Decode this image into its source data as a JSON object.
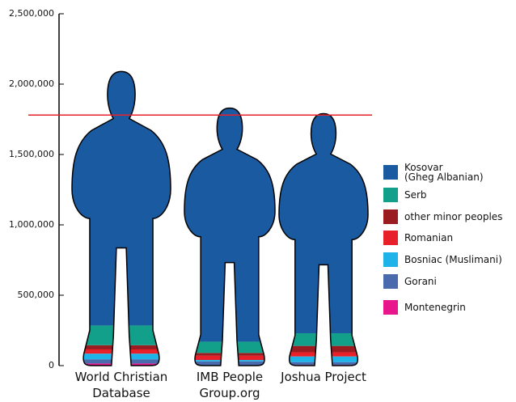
{
  "chart_data": {
    "type": "pictograph",
    "categories": [
      "World Christian Database",
      "IMB People Group.org",
      "Joshua Project"
    ],
    "series": [
      {
        "name": "Kosovar\n(Gheg Albanian)",
        "color": "#1a5aa0",
        "values": [
          1805000,
          1660000,
          1560000
        ]
      },
      {
        "name": "Serb",
        "color": "#12a08a",
        "values": [
          140000,
          80000,
          90000
        ]
      },
      {
        "name": "other minor peoples",
        "color": "#9b1c20",
        "values": [
          30000,
          20000,
          45000
        ]
      },
      {
        "name": "Romanian",
        "color": "#e8202a",
        "values": [
          30000,
          30000,
          30000
        ]
      },
      {
        "name": "Bosniac (Muslimani)",
        "color": "#1eb4ea",
        "values": [
          40000,
          10000,
          40000
        ]
      },
      {
        "name": "Gorani",
        "color": "#4a6aae",
        "values": [
          30000,
          30000,
          20000
        ]
      },
      {
        "name": "Montenegrin",
        "color": "#e8168c",
        "values": [
          15000,
          0,
          5000
        ]
      }
    ],
    "reference_line": 1780000,
    "ylim": [
      0,
      2500000
    ],
    "yticks": [
      0,
      {
        "value": 500000,
        "label": "500,000"
      },
      {
        "value": 1000000,
        "label": "1,000,000"
      },
      {
        "value": 1500000,
        "label": "1,500,000"
      },
      {
        "value": 2000000,
        "label": "2,000,000"
      },
      {
        "value": 2500000,
        "label": "2,500,000"
      }
    ]
  }
}
